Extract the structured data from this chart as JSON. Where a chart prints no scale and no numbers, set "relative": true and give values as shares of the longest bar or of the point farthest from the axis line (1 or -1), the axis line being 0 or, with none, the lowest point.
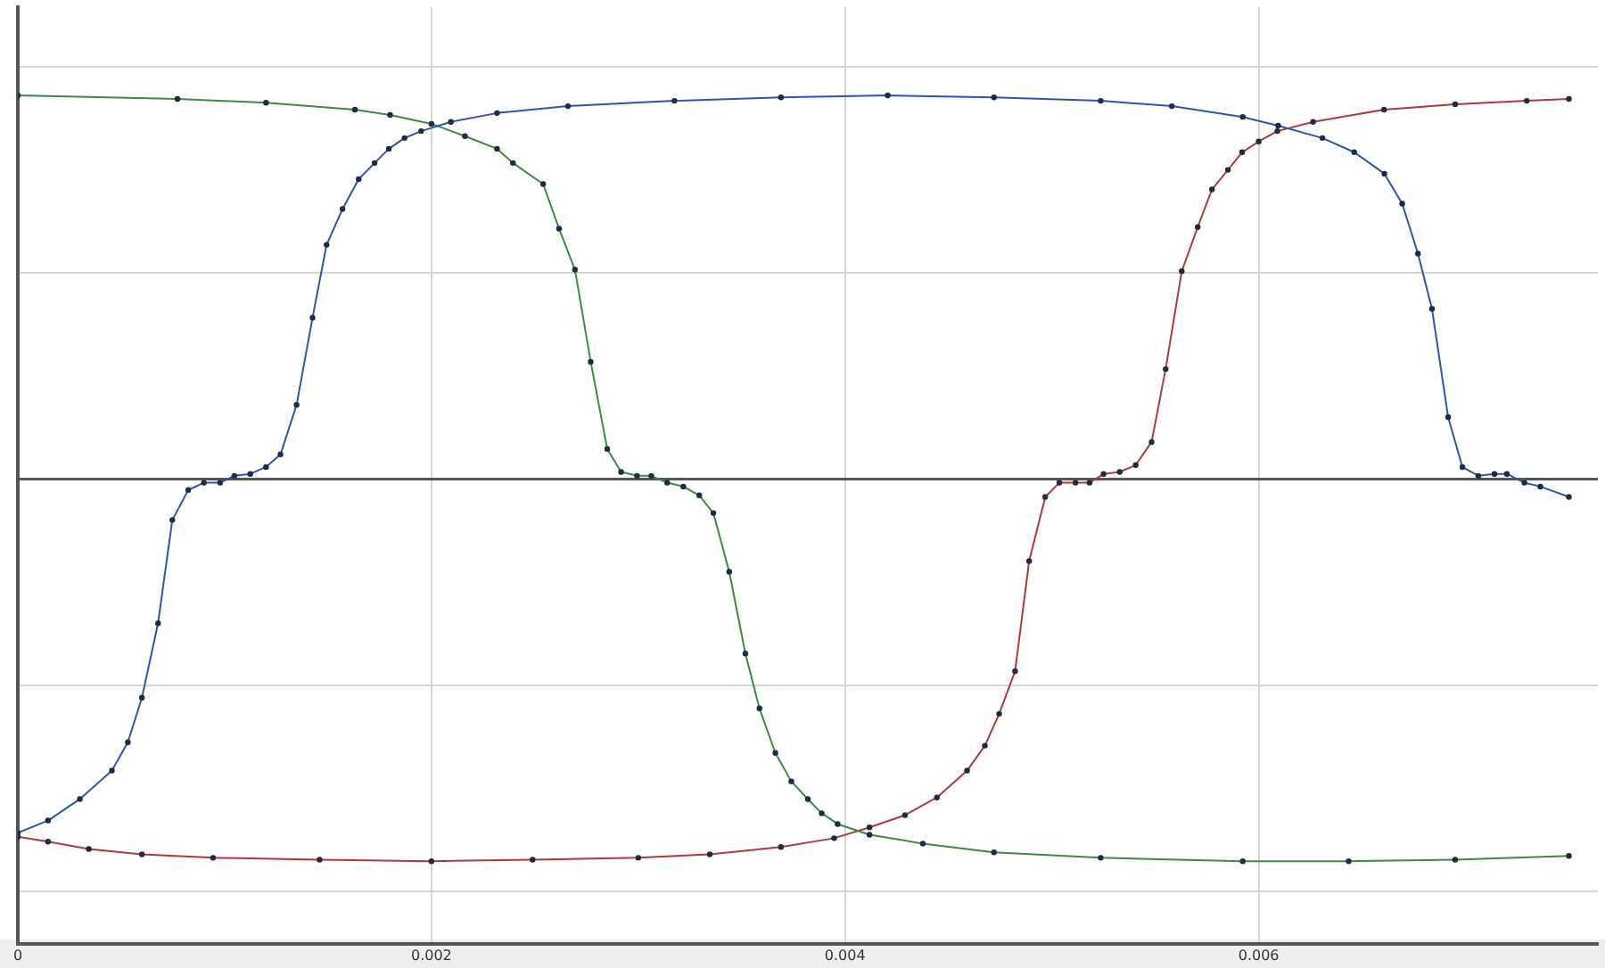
{
  "chart_data": {
    "type": "line",
    "relative": true,
    "grid": true,
    "marker": "circle",
    "line_style": "solid",
    "xlim": [
      0,
      0.00764
    ],
    "xticks": [
      0,
      0.002,
      0.004,
      0.006
    ],
    "series": [
      {
        "color": "#2f55b0",
        "x": [
          0,
          0.000146,
          0.0003,
          0.000455,
          0.000532,
          0.0006,
          0.000678,
          0.000747,
          0.000824,
          0.0009,
          0.000978,
          0.001047,
          0.001124,
          0.0012,
          0.00127,
          0.001348,
          0.001425,
          0.001493,
          0.00157,
          0.001648,
          0.001725,
          0.001794,
          0.00187,
          0.00195,
          0.002094,
          0.002317,
          0.00266,
          0.003175,
          0.00369,
          0.004206,
          0.00472,
          0.005236,
          0.00558,
          0.005923,
          0.006094,
          0.006308,
          0.006462,
          0.006608,
          0.006694,
          0.00677,
          0.006838,
          0.006916,
          0.006985,
          0.007062,
          0.00714,
          0.0072,
          0.007285,
          0.007362,
          0.0075
        ],
        "values": [
          -0.921,
          -0.889,
          -0.833,
          -0.759,
          -0.685,
          -0.569,
          -0.375,
          -0.106,
          -0.028,
          -0.009,
          -0.009,
          0.009,
          0.014,
          0.032,
          0.065,
          0.194,
          0.421,
          0.611,
          0.704,
          0.782,
          0.824,
          0.861,
          0.889,
          0.907,
          0.931,
          0.954,
          0.972,
          0.986,
          0.995,
          1,
          0.995,
          0.986,
          0.972,
          0.944,
          0.921,
          0.889,
          0.852,
          0.796,
          0.718,
          0.588,
          0.444,
          0.162,
          0.032,
          0.009,
          0.014,
          0.014,
          -0.009,
          -0.019,
          -0.046
        ]
      },
      {
        "color": "#3f8a3f",
        "x": [
          0,
          0.000772,
          0.0012,
          0.00163,
          0.0018,
          0.002,
          0.002162,
          0.002317,
          0.002394,
          0.00254,
          0.002617,
          0.002694,
          0.00277,
          0.00285,
          0.002917,
          0.002994,
          0.003063,
          0.00314,
          0.003218,
          0.003295,
          0.003363,
          0.00344,
          0.003518,
          0.003586,
          0.003663,
          0.00374,
          0.00382,
          0.003887,
          0.003964,
          0.004118,
          0.004376,
          0.00472,
          0.005236,
          0.005923,
          0.006435,
          0.00695,
          0.0075
        ],
        "values": [
          1,
          0.991,
          0.981,
          0.963,
          0.949,
          0.926,
          0.894,
          0.861,
          0.824,
          0.769,
          0.653,
          0.546,
          0.306,
          0.079,
          0.019,
          0.009,
          0.009,
          -0.009,
          -0.019,
          -0.042,
          -0.088,
          -0.241,
          -0.454,
          -0.597,
          -0.713,
          -0.787,
          -0.833,
          -0.87,
          -0.898,
          -0.926,
          -0.949,
          -0.972,
          -0.986,
          -0.995,
          -0.995,
          -0.991,
          -0.981
        ]
      },
      {
        "color": "#b03a3a",
        "x": [
          0,
          0.000146,
          0.000343,
          0.0006,
          0.000944,
          0.001459,
          0.002,
          0.002489,
          0.003,
          0.003346,
          0.00369,
          0.003947,
          0.004118,
          0.00429,
          0.004444,
          0.00459,
          0.004676,
          0.004745,
          0.004822,
          0.00489,
          0.004968,
          0.005036,
          0.005114,
          0.005182,
          0.00525,
          0.005328,
          0.005405,
          0.005482,
          0.00555,
          0.005628,
          0.005705,
          0.005774,
          0.005851,
          0.00592,
          0.006,
          0.00609,
          0.006263,
          0.006606,
          0.00695,
          0.007296,
          0.0075
        ],
        "values": [
          -0.931,
          -0.944,
          -0.963,
          -0.977,
          -0.986,
          -0.991,
          -0.995,
          -0.991,
          -0.986,
          -0.977,
          -0.958,
          -0.935,
          -0.907,
          -0.875,
          -0.829,
          -0.759,
          -0.694,
          -0.611,
          -0.5,
          -0.213,
          -0.046,
          -0.009,
          -0.009,
          -0.009,
          0.014,
          0.019,
          0.037,
          0.097,
          0.287,
          0.542,
          0.657,
          0.755,
          0.806,
          0.852,
          0.88,
          0.907,
          0.931,
          0.963,
          0.977,
          0.986,
          0.991
        ]
      }
    ]
  }
}
